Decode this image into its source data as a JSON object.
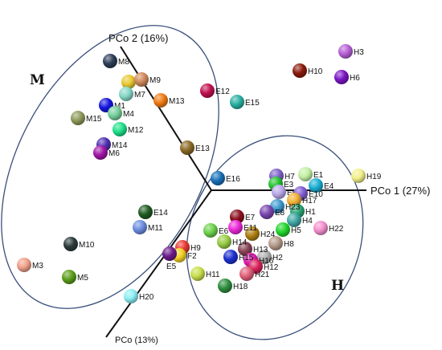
{
  "chart_data": {
    "type": "scatter",
    "title": "",
    "axes": {
      "pco1": "PCo 1 (27%)",
      "pco2": "PCo 2 (16%)",
      "pco3": "PCo (13%)"
    },
    "groups": [
      {
        "label": "M"
      },
      {
        "label": "H"
      }
    ],
    "points": [
      {
        "label": "H3",
        "color": "#b65fd6"
      },
      {
        "label": "H10",
        "color": "#8b1a0c"
      },
      {
        "label": "H6",
        "color": "#7a16c4"
      },
      {
        "label": "H19",
        "color": "#f1f08a"
      },
      {
        "label": "H22",
        "color": "#f48fcc"
      },
      {
        "label": "H7",
        "color": "#7f62c9"
      },
      {
        "label": "E1",
        "color": "#c3f0a4"
      },
      {
        "label": "E3",
        "color": "#22c42f"
      },
      {
        "label": "E4",
        "color": "#1aaed2"
      },
      {
        "label": "E9",
        "color": "#b9a8e8"
      },
      {
        "label": "E10",
        "color": "#7f5ad4"
      },
      {
        "label": "H17",
        "color": "#f0b034"
      },
      {
        "label": "H1",
        "color": "#2aa673"
      },
      {
        "label": "H23",
        "color": "#3e9ad0"
      },
      {
        "label": "E8",
        "color": "#7a46b0"
      },
      {
        "label": "H4",
        "color": "#40a6a3"
      },
      {
        "label": "H5",
        "color": "#22d52b"
      },
      {
        "label": "H8",
        "color": "#b59a8b"
      },
      {
        "label": "H24",
        "color": "#ae7f12"
      },
      {
        "label": "H2",
        "color": "#b0b0b0"
      },
      {
        "label": "H13",
        "color": "#884455"
      },
      {
        "label": "H16",
        "color": "#e01ab0"
      },
      {
        "label": "H12",
        "color": "#d8205a"
      },
      {
        "label": "H21",
        "color": "#e0607a"
      },
      {
        "label": "H15",
        "color": "#1d2fcf"
      },
      {
        "label": "H14",
        "color": "#99cc44"
      },
      {
        "label": "H11",
        "color": "#c8de4a"
      },
      {
        "label": "H18",
        "color": "#2e8e3e"
      },
      {
        "label": "E6",
        "color": "#6cd04a"
      },
      {
        "label": "E7",
        "color": "#8b0f1e"
      },
      {
        "label": "E11",
        "color": "#ec2ad8"
      },
      {
        "label": "H9",
        "color": "#e83a30"
      },
      {
        "label": "F2",
        "color": "#f3d125"
      },
      {
        "label": "E5",
        "color": "#6d1a8a"
      },
      {
        "label": "H20",
        "color": "#8beff4"
      },
      {
        "label": "E16",
        "color": "#1a70b8"
      },
      {
        "label": "E14",
        "color": "#1f5c22"
      },
      {
        "label": "M11",
        "color": "#6c8ee0"
      },
      {
        "label": "E13",
        "color": "#8a6a25"
      },
      {
        "label": "E12",
        "color": "#c0104e"
      },
      {
        "label": "E15",
        "color": "#2ab0a2"
      },
      {
        "label": "M13",
        "color": "#f07b14"
      },
      {
        "label": "M8",
        "color": "#2d3e58"
      },
      {
        "label": "M2",
        "color": "#e8c82e"
      },
      {
        "label": "M9",
        "color": "#d08a5a"
      },
      {
        "label": "M7",
        "color": "#86d7c6"
      },
      {
        "label": "M1",
        "color": "#1515e0"
      },
      {
        "label": "M4",
        "color": "#76d09c"
      },
      {
        "label": "M15",
        "color": "#8e9a5a"
      },
      {
        "label": "M12",
        "color": "#1ee08a"
      },
      {
        "label": "M14",
        "color": "#4f30b4"
      },
      {
        "label": "M6",
        "color": "#a016a6"
      },
      {
        "label": "M10",
        "color": "#2c3a3a"
      },
      {
        "label": "M3",
        "color": "#f0a08a"
      },
      {
        "label": "M5",
        "color": "#5a9e1a"
      }
    ]
  }
}
